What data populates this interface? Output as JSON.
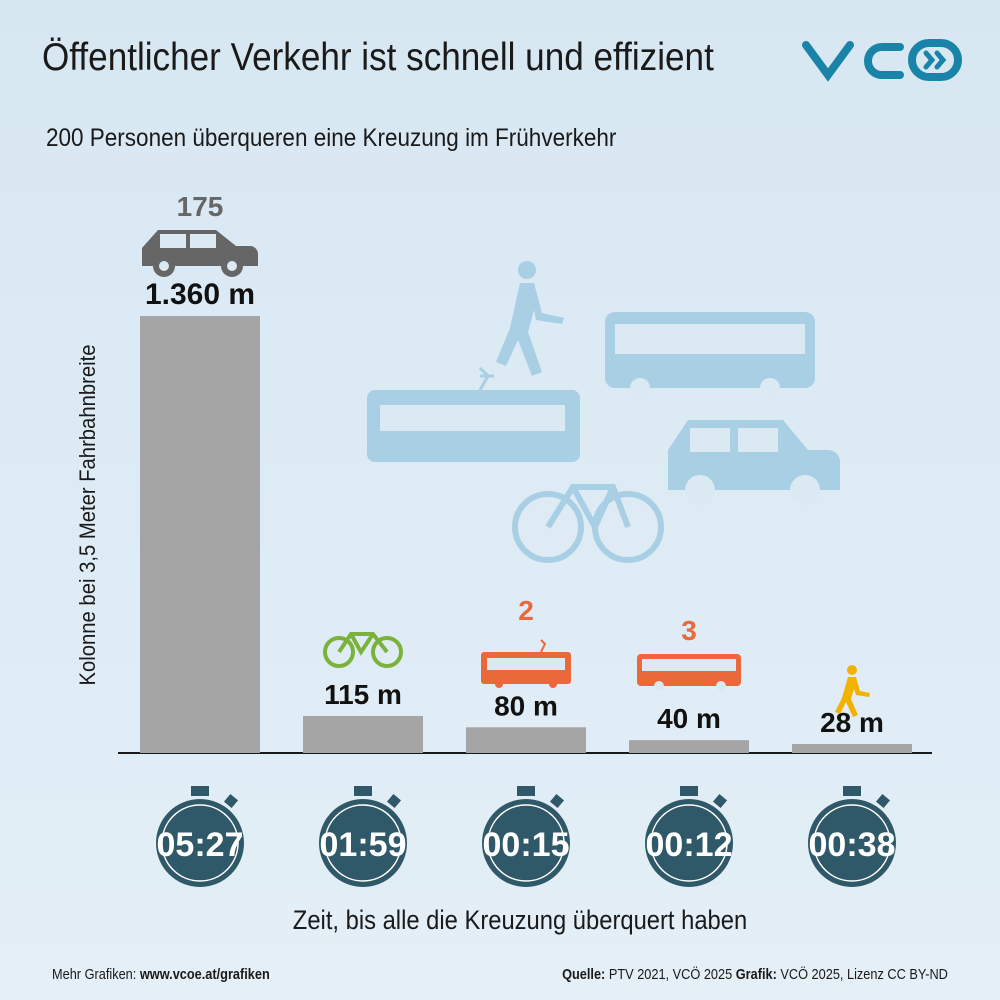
{
  "title": "Öffentlicher Verkehr ist schnell und effizient",
  "subtitle": "200 Personen überqueren eine Kreuzung im Frühverkehr",
  "logo_text": "VCÖ",
  "colors": {
    "bar": "#a5a5a5",
    "stopwatch": "#2f5868",
    "accent": "#e9693a",
    "bike": "#7bb33a",
    "walk": "#f2b300",
    "illustration": "#a8cfe4",
    "logo": "#1a84a8"
  },
  "chart_data": {
    "type": "bar",
    "ylabel": "Kolonne bei 3,5 Meter Fahrbahnbreite",
    "xlabel": "Zeit, bis alle die Kreuzung überquert haben",
    "categories": [
      "car",
      "bicycle",
      "tram",
      "bus",
      "pedestrian"
    ],
    "icons": [
      "car-icon",
      "bicycle-icon",
      "tram-icon",
      "bus-icon",
      "pedestrian-icon"
    ],
    "values": [
      1360,
      115,
      80,
      40,
      28
    ],
    "value_labels": [
      "1.360 m",
      "115 m",
      "80 m",
      "40 m",
      "28 m"
    ],
    "vehicle_counts": [
      "175",
      "",
      "2",
      "3",
      ""
    ],
    "times": [
      "05:27",
      "01:59",
      "00:15",
      "00:12",
      "00:38"
    ],
    "ylim": [
      0,
      1360
    ]
  },
  "footer": {
    "more_label": "Mehr Grafiken:",
    "more_link": "www.vcoe.at/grafiken",
    "source_label": "Quelle:",
    "source": "PTV 2021, VCÖ 2025",
    "graphic_label": "Grafik:",
    "graphic": "VCÖ 2025, Lizenz CC BY-ND"
  }
}
